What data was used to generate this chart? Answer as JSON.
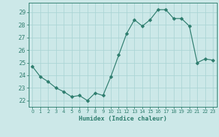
{
  "x": [
    0,
    1,
    2,
    3,
    4,
    5,
    6,
    7,
    8,
    9,
    10,
    11,
    12,
    13,
    14,
    15,
    16,
    17,
    18,
    19,
    20,
    21,
    22,
    23
  ],
  "y": [
    24.7,
    23.9,
    23.5,
    23.0,
    22.7,
    22.3,
    22.4,
    22.0,
    22.6,
    22.4,
    23.9,
    25.6,
    27.3,
    28.4,
    27.9,
    28.4,
    29.2,
    29.2,
    28.5,
    28.5,
    27.9,
    25.0,
    25.3,
    25.2
  ],
  "line_color": "#2e7d6e",
  "marker": "D",
  "marker_size": 2.5,
  "bg_color": "#cce8e8",
  "grid_color": "#aad4d4",
  "axis_color": "#2e7d6e",
  "tick_color": "#2e7d6e",
  "xlabel": "Humidex (Indice chaleur)",
  "xlim": [
    -0.5,
    23.5
  ],
  "ylim": [
    21.5,
    29.75
  ],
  "yticks": [
    22,
    23,
    24,
    25,
    26,
    27,
    28,
    29
  ],
  "xticks": [
    0,
    1,
    2,
    3,
    4,
    5,
    6,
    7,
    8,
    9,
    10,
    11,
    12,
    13,
    14,
    15,
    16,
    17,
    18,
    19,
    20,
    21,
    22,
    23
  ]
}
